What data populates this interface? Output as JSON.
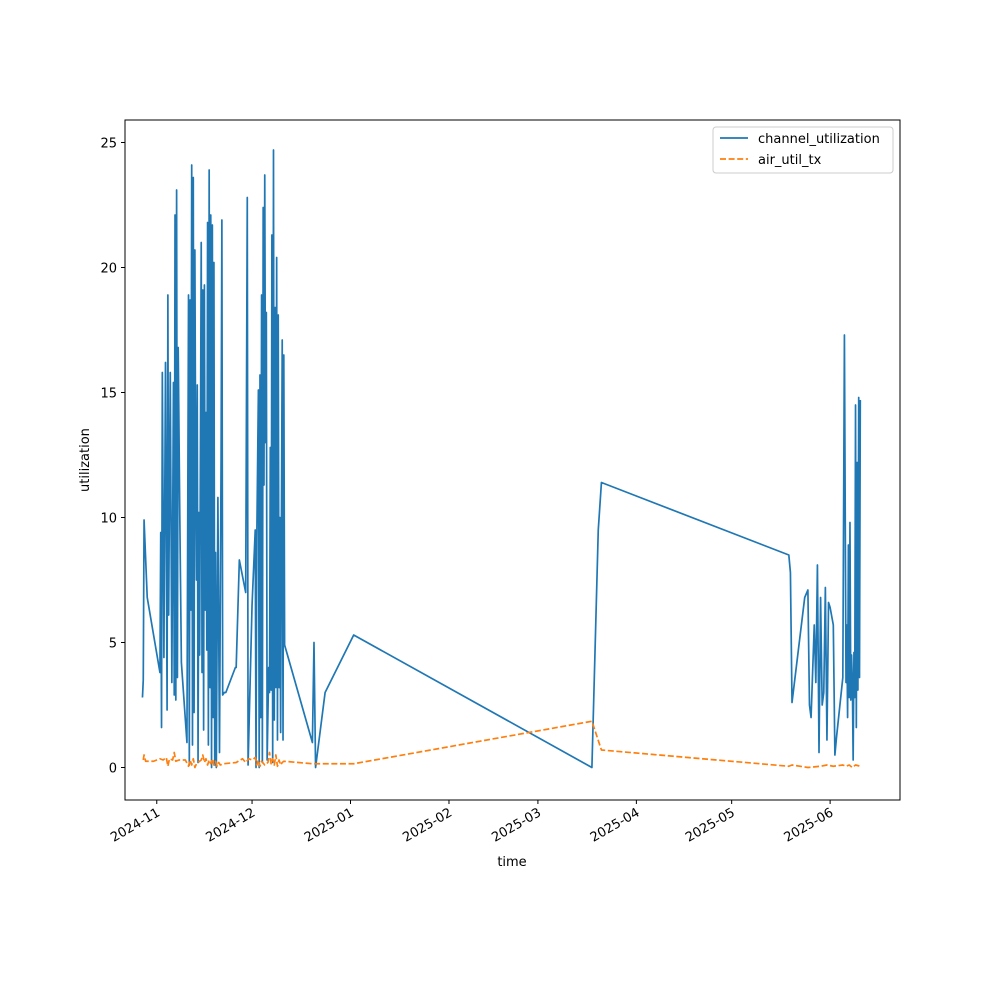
{
  "chart_data": {
    "type": "line",
    "title": "",
    "xlabel": "time",
    "ylabel": "utilization",
    "xlim": [
      "2024-10-22",
      "2025-06-23"
    ],
    "ylim": [
      -1.3,
      25.9
    ],
    "x_ticks": [
      "2024-11-01",
      "2024-12-01",
      "2025-01-01",
      "2025-02-01",
      "2025-03-01",
      "2025-04-01",
      "2025-05-01",
      "2025-06-01"
    ],
    "x_tick_labels": [
      "2024-11",
      "2024-12",
      "2025-01",
      "2025-02",
      "2025-03",
      "2025-04",
      "2025-05",
      "2025-06"
    ],
    "y_ticks": [
      0,
      5,
      10,
      15,
      20,
      25
    ],
    "y_tick_labels": [
      "0",
      "5",
      "10",
      "15",
      "20",
      "25"
    ],
    "grid": false,
    "legend_position": "upper right",
    "series": [
      {
        "name": "channel_utilization",
        "color": "#1f77b4",
        "style": "solid",
        "points": [
          [
            "2024-10-27T12:00",
            2.8
          ],
          [
            "2024-10-27T18:00",
            3.5
          ],
          [
            "2024-10-28T00:00",
            9.9
          ],
          [
            "2024-10-29T00:00",
            6.8
          ],
          [
            "2024-11-02T00:00",
            3.8
          ],
          [
            "2024-11-02T06:00",
            9.4
          ],
          [
            "2024-11-02T12:00",
            1.6
          ],
          [
            "2024-11-02T18:00",
            15.8
          ],
          [
            "2024-11-03T06:00",
            4.4
          ],
          [
            "2024-11-03T18:00",
            16.2
          ],
          [
            "2024-11-04T06:00",
            2.3
          ],
          [
            "2024-11-04T12:00",
            18.9
          ],
          [
            "2024-11-04T18:00",
            6.1
          ],
          [
            "2024-11-05T06:00",
            15.8
          ],
          [
            "2024-11-05T18:00",
            3.4
          ],
          [
            "2024-11-06T06:00",
            15.4
          ],
          [
            "2024-11-06T12:00",
            2.9
          ],
          [
            "2024-11-06T18:00",
            22.1
          ],
          [
            "2024-11-07T00:00",
            2.7
          ],
          [
            "2024-11-07T06:00",
            23.1
          ],
          [
            "2024-11-07T12:00",
            3.6
          ],
          [
            "2024-11-07T18:00",
            16.8
          ],
          [
            "2024-11-08T06:00",
            10.1
          ],
          [
            "2024-11-08T18:00",
            4.2
          ],
          [
            "2024-11-10T12:00",
            1.0
          ],
          [
            "2024-11-11T00:00",
            18.9
          ],
          [
            "2024-11-11T06:00",
            0.1
          ],
          [
            "2024-11-11T12:00",
            18.7
          ],
          [
            "2024-11-11T18:00",
            6.3
          ],
          [
            "2024-11-12T00:00",
            24.1
          ],
          [
            "2024-11-12T06:00",
            0.9
          ],
          [
            "2024-11-12T12:00",
            23.6
          ],
          [
            "2024-11-12T18:00",
            2.2
          ],
          [
            "2024-11-13T00:00",
            20.7
          ],
          [
            "2024-11-13T06:00",
            12.0
          ],
          [
            "2024-11-13T12:00",
            7.5
          ],
          [
            "2024-11-13T18:00",
            15.3
          ],
          [
            "2024-11-14T00:00",
            0.2
          ],
          [
            "2024-11-14T06:00",
            10.2
          ],
          [
            "2024-11-14T12:00",
            4.5
          ],
          [
            "2024-11-15T00:00",
            21.0
          ],
          [
            "2024-11-15T06:00",
            3.8
          ],
          [
            "2024-11-15T12:00",
            19.1
          ],
          [
            "2024-11-15T18:00",
            1.5
          ],
          [
            "2024-11-16T00:00",
            19.3
          ],
          [
            "2024-11-16T06:00",
            6.3
          ],
          [
            "2024-11-16T12:00",
            14.2
          ],
          [
            "2024-11-16T18:00",
            4.7
          ],
          [
            "2024-11-17T00:00",
            21.8
          ],
          [
            "2024-11-17T06:00",
            0.9
          ],
          [
            "2024-11-17T12:00",
            23.9
          ],
          [
            "2024-11-17T18:00",
            3.2
          ],
          [
            "2024-11-18T00:00",
            22.1
          ],
          [
            "2024-11-18T06:00",
            0.0
          ],
          [
            "2024-11-18T12:00",
            21.7
          ],
          [
            "2024-11-18T18:00",
            2.0
          ],
          [
            "2024-11-19T00:00",
            20.2
          ],
          [
            "2024-11-19T06:00",
            0.1
          ],
          [
            "2024-11-19T12:00",
            8.6
          ],
          [
            "2024-11-19T18:00",
            0.0
          ],
          [
            "2024-11-20T06:00",
            10.8
          ],
          [
            "2024-11-20T18:00",
            0.6
          ],
          [
            "2024-11-21T06:00",
            12.3
          ],
          [
            "2024-11-21T12:00",
            21.9
          ],
          [
            "2024-11-21T18:00",
            2.9
          ],
          [
            "2024-11-22T06:00",
            3.0
          ],
          [
            "2024-11-22T18:00",
            3.0
          ],
          [
            "2024-11-25T18:00",
            4.0
          ],
          [
            "2024-11-26T00:00",
            4.0
          ],
          [
            "2024-11-27T00:00",
            8.3
          ],
          [
            "2024-11-29T00:00",
            7.0
          ],
          [
            "2024-11-29T12:00",
            22.8
          ],
          [
            "2024-11-29T18:00",
            0.1
          ],
          [
            "2024-12-01T00:00",
            6.5
          ],
          [
            "2024-12-02T00:00",
            9.5
          ],
          [
            "2024-12-02T06:00",
            0.0
          ],
          [
            "2024-12-02T12:00",
            9.2
          ],
          [
            "2024-12-03T00:00",
            15.1
          ],
          [
            "2024-12-03T06:00",
            0.0
          ],
          [
            "2024-12-03T12:00",
            15.7
          ],
          [
            "2024-12-03T18:00",
            2.0
          ],
          [
            "2024-12-04T00:00",
            18.9
          ],
          [
            "2024-12-04T06:00",
            0.2
          ],
          [
            "2024-12-04T12:00",
            22.4
          ],
          [
            "2024-12-04T18:00",
            11.3
          ],
          [
            "2024-12-05T00:00",
            23.7
          ],
          [
            "2024-12-05T06:00",
            13.0
          ],
          [
            "2024-12-05T12:00",
            18.2
          ],
          [
            "2024-12-05T18:00",
            0.3
          ],
          [
            "2024-12-06T06:00",
            4.0
          ],
          [
            "2024-12-06T12:00",
            3.0
          ],
          [
            "2024-12-06T18:00",
            12.8
          ],
          [
            "2024-12-07T00:00",
            3.1
          ],
          [
            "2024-12-07T06:00",
            21.3
          ],
          [
            "2024-12-07T12:00",
            0.2
          ],
          [
            "2024-12-07T18:00",
            24.7
          ],
          [
            "2024-12-08T00:00",
            1.9
          ],
          [
            "2024-12-08T06:00",
            18.4
          ],
          [
            "2024-12-08T12:00",
            3.2
          ],
          [
            "2024-12-08T18:00",
            20.4
          ],
          [
            "2024-12-09T00:00",
            1.1
          ],
          [
            "2024-12-09T06:00",
            18.1
          ],
          [
            "2024-12-09T12:00",
            3.2
          ],
          [
            "2024-12-09T18:00",
            10.0
          ],
          [
            "2024-12-10T00:00",
            1.4
          ],
          [
            "2024-12-10T06:00",
            9.9
          ],
          [
            "2024-12-10T12:00",
            17.1
          ],
          [
            "2024-12-10T18:00",
            1.1
          ],
          [
            "2024-12-11T00:00",
            16.5
          ],
          [
            "2024-12-11T06:00",
            4.9
          ],
          [
            "2024-12-20T00:00",
            1.0
          ],
          [
            "2024-12-20T12:00",
            5.0
          ],
          [
            "2024-12-21T00:00",
            0.0
          ],
          [
            "2024-12-24T00:00",
            3.0
          ],
          [
            "2025-01-02T00:00",
            5.3
          ],
          [
            "2025-03-18T00:00",
            0.0
          ],
          [
            "2025-03-20T00:00",
            9.5
          ],
          [
            "2025-03-21T00:00",
            11.4
          ],
          [
            "2025-05-19T00:00",
            8.5
          ],
          [
            "2025-05-19T12:00",
            7.8
          ],
          [
            "2025-05-20T00:00",
            2.6
          ],
          [
            "2025-05-24T00:00",
            6.8
          ],
          [
            "2025-05-25T00:00",
            7.1
          ],
          [
            "2025-05-25T12:00",
            2.5
          ],
          [
            "2025-05-26T00:00",
            2.0
          ],
          [
            "2025-05-27T00:00",
            5.7
          ],
          [
            "2025-05-27T12:00",
            3.4
          ],
          [
            "2025-05-28T00:00",
            8.1
          ],
          [
            "2025-05-28T12:00",
            0.6
          ],
          [
            "2025-05-29T00:00",
            6.8
          ],
          [
            "2025-05-29T12:00",
            2.5
          ],
          [
            "2025-05-30T00:00",
            3.0
          ],
          [
            "2025-05-30T12:00",
            7.2
          ],
          [
            "2025-05-31T00:00",
            1.1
          ],
          [
            "2025-05-31T12:00",
            6.6
          ],
          [
            "2025-06-01T00:00",
            6.4
          ],
          [
            "2025-06-02T00:00",
            5.7
          ],
          [
            "2025-06-02T12:00",
            0.5
          ],
          [
            "2025-06-03T00:00",
            1.2
          ],
          [
            "2025-06-05T00:00",
            3.6
          ],
          [
            "2025-06-05T12:00",
            17.3
          ],
          [
            "2025-06-06T00:00",
            3.4
          ],
          [
            "2025-06-06T06:00",
            5.7
          ],
          [
            "2025-06-06T12:00",
            2.0
          ],
          [
            "2025-06-06T18:00",
            8.9
          ],
          [
            "2025-06-07T00:00",
            2.8
          ],
          [
            "2025-06-07T06:00",
            9.8
          ],
          [
            "2025-06-07T12:00",
            2.7
          ],
          [
            "2025-06-07T18:00",
            4.5
          ],
          [
            "2025-06-08T00:00",
            3.4
          ],
          [
            "2025-06-08T06:00",
            0.3
          ],
          [
            "2025-06-08T12:00",
            4.6
          ],
          [
            "2025-06-08T18:00",
            2.8
          ],
          [
            "2025-06-09T00:00",
            14.5
          ],
          [
            "2025-06-09T06:00",
            1.6
          ],
          [
            "2025-06-09T12:00",
            12.2
          ],
          [
            "2025-06-09T18:00",
            3.1
          ],
          [
            "2025-06-10T00:00",
            14.8
          ],
          [
            "2025-06-10T06:00",
            3.6
          ],
          [
            "2025-06-10T12:00",
            14.7
          ]
        ]
      },
      {
        "name": "air_util_tx",
        "color": "#ff7f0e",
        "style": "dashed",
        "points": [
          [
            "2024-10-27T18:00",
            0.3
          ],
          [
            "2024-10-28T00:00",
            0.5
          ],
          [
            "2024-10-28T12:00",
            0.25
          ],
          [
            "2024-10-31T00:00",
            0.25
          ],
          [
            "2024-11-02T00:00",
            0.35
          ],
          [
            "2024-11-03T00:00",
            0.3
          ],
          [
            "2024-11-04T00:00",
            0.4
          ],
          [
            "2024-11-04T12:00",
            0.05
          ],
          [
            "2024-11-05T00:00",
            0.35
          ],
          [
            "2024-11-06T00:00",
            0.3
          ],
          [
            "2024-11-06T12:00",
            0.6
          ],
          [
            "2024-11-07T00:00",
            0.25
          ],
          [
            "2024-11-08T00:00",
            0.3
          ],
          [
            "2024-11-10T00:00",
            0.3
          ],
          [
            "2024-11-11T00:00",
            0.05
          ],
          [
            "2024-11-11T12:00",
            0.3
          ],
          [
            "2024-11-12T00:00",
            0.1
          ],
          [
            "2024-11-12T12:00",
            0.35
          ],
          [
            "2024-11-13T00:00",
            0.0
          ],
          [
            "2024-11-13T12:00",
            0.15
          ],
          [
            "2024-11-14T00:00",
            0.2
          ],
          [
            "2024-11-15T00:00",
            0.3
          ],
          [
            "2024-11-15T12:00",
            0.5
          ],
          [
            "2024-11-16T00:00",
            0.2
          ],
          [
            "2024-11-16T12:00",
            0.35
          ],
          [
            "2024-11-17T00:00",
            0.1
          ],
          [
            "2024-11-17T12:00",
            0.3
          ],
          [
            "2024-11-18T00:00",
            0.15
          ],
          [
            "2024-11-18T12:00",
            0.35
          ],
          [
            "2024-11-19T00:00",
            0.1
          ],
          [
            "2024-11-19T12:00",
            0.25
          ],
          [
            "2024-11-20T00:00",
            0.05
          ],
          [
            "2024-11-20T12:00",
            0.2
          ],
          [
            "2024-11-21T00:00",
            0.1
          ],
          [
            "2024-11-22T00:00",
            0.15
          ],
          [
            "2024-11-26T00:00",
            0.2
          ],
          [
            "2024-11-28T00:00",
            0.35
          ],
          [
            "2024-11-29T00:00",
            0.2
          ],
          [
            "2024-11-30T00:00",
            0.35
          ],
          [
            "2024-12-01T00:00",
            0.3
          ],
          [
            "2024-12-02T00:00",
            0.4
          ],
          [
            "2024-12-02T12:00",
            0.1
          ],
          [
            "2024-12-03T00:00",
            0.3
          ],
          [
            "2024-12-03T12:00",
            0.05
          ],
          [
            "2024-12-04T00:00",
            0.25
          ],
          [
            "2024-12-05T00:00",
            0.1
          ],
          [
            "2024-12-06T00:00",
            0.2
          ],
          [
            "2024-12-06T12:00",
            0.6
          ],
          [
            "2024-12-07T00:00",
            0.15
          ],
          [
            "2024-12-07T12:00",
            0.35
          ],
          [
            "2024-12-08T00:00",
            0.1
          ],
          [
            "2024-12-08T12:00",
            0.5
          ],
          [
            "2024-12-09T00:00",
            0.05
          ],
          [
            "2024-12-09T12:00",
            0.3
          ],
          [
            "2024-12-10T00:00",
            0.1
          ],
          [
            "2024-12-10T12:00",
            0.2
          ],
          [
            "2024-12-11T00:00",
            0.25
          ],
          [
            "2024-12-20T00:00",
            0.15
          ],
          [
            "2024-12-21T00:00",
            0.15
          ],
          [
            "2025-01-02T00:00",
            0.15
          ],
          [
            "2025-03-18T00:00",
            1.85
          ],
          [
            "2025-03-21T00:00",
            0.7
          ],
          [
            "2025-05-19T00:00",
            0.05
          ],
          [
            "2025-05-20T00:00",
            0.1
          ],
          [
            "2025-05-25T00:00",
            0.0
          ],
          [
            "2025-05-29T00:00",
            0.05
          ],
          [
            "2025-05-31T00:00",
            0.1
          ],
          [
            "2025-06-02T00:00",
            0.05
          ],
          [
            "2025-06-05T00:00",
            0.1
          ],
          [
            "2025-06-06T00:00",
            0.05
          ],
          [
            "2025-06-07T00:00",
            0.1
          ],
          [
            "2025-06-08T00:00",
            0.0
          ],
          [
            "2025-06-09T00:00",
            0.1
          ],
          [
            "2025-06-10T12:00",
            0.05
          ]
        ]
      }
    ]
  }
}
